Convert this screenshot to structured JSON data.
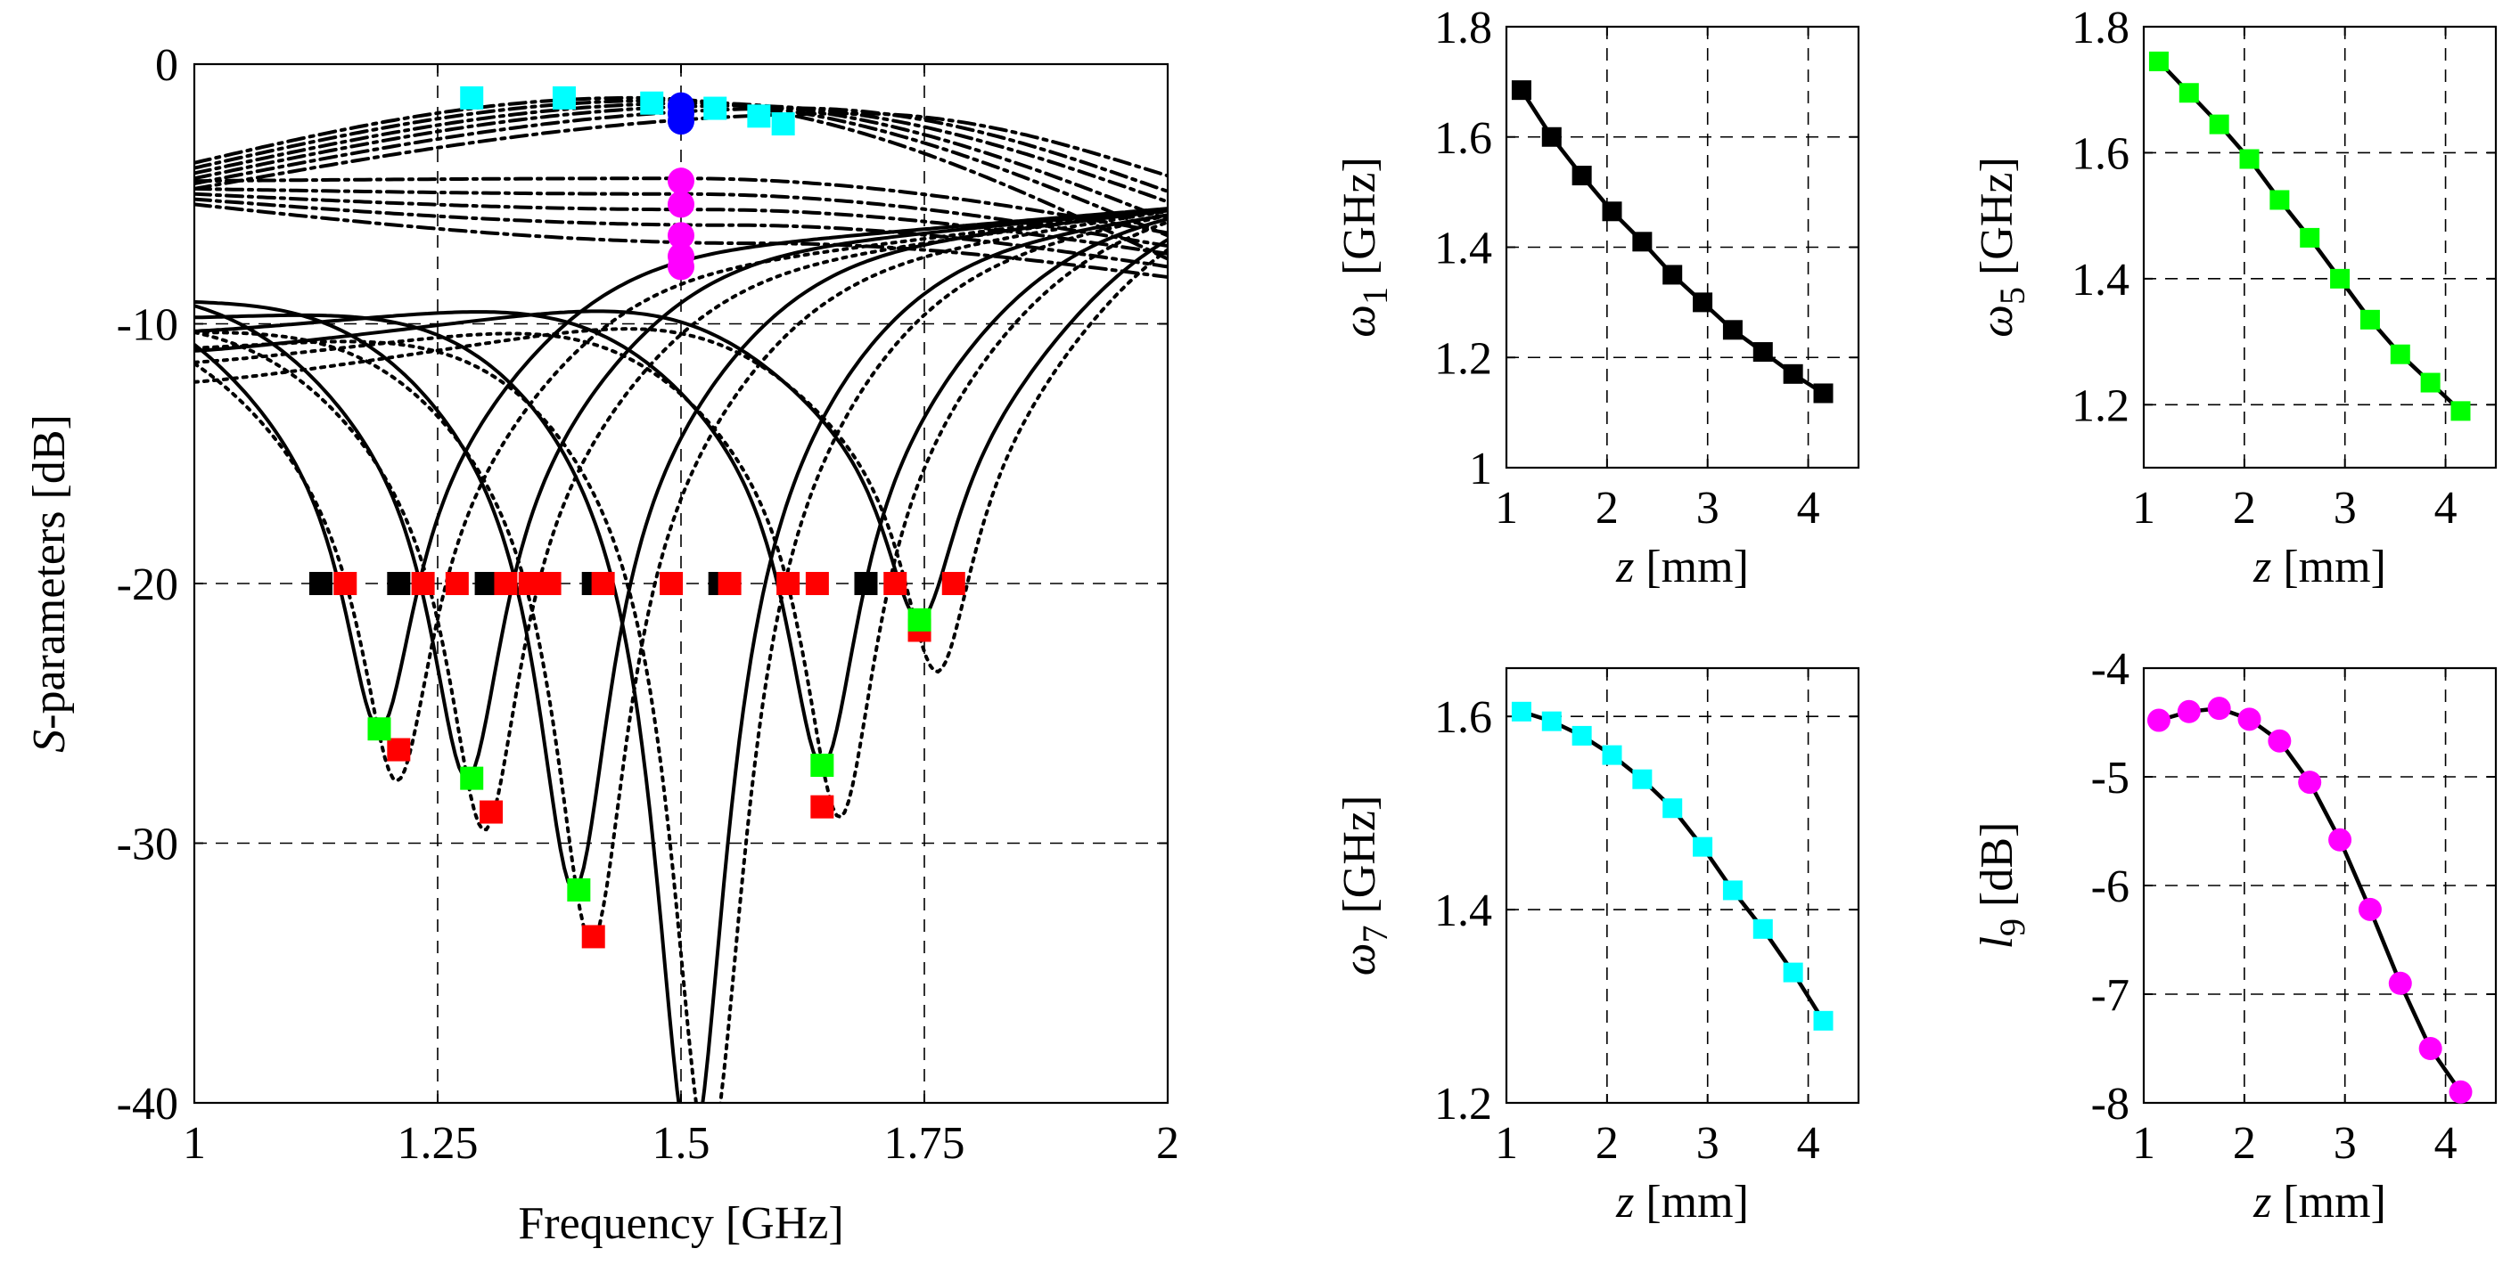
{
  "colors": {
    "black": "#000000",
    "red": "#ff0000",
    "green": "#00ff00",
    "cyan": "#00ffff",
    "magenta": "#ff00ff",
    "blue": "#0000ff"
  },
  "chart_data": [
    {
      "id": "main",
      "type": "line",
      "xlabel": "Frequency [GHz]",
      "ylabel": {
        "italic": "S",
        "rest": "-parameters [dB]"
      },
      "xlim": [
        1,
        2
      ],
      "ylim": [
        -40,
        0
      ],
      "xticks": [
        1,
        1.25,
        1.5,
        1.75,
        2
      ],
      "xtick_labels": [
        "1",
        "1.25",
        "1.5",
        "1.75",
        "2"
      ],
      "yticks": [
        -40,
        -30,
        -20,
        -10,
        0
      ],
      "ytick_labels": [
        "-40",
        "-30",
        "-20",
        "-10",
        "0"
      ],
      "grid": true,
      "reflection_curves": [
        {
          "f0": 1.19,
          "depth": -25.6,
          "width": 0.42,
          "start": -8.0
        },
        {
          "f0": 1.28,
          "depth": -27.5,
          "width": 0.4,
          "start": -8.3
        },
        {
          "f0": 1.39,
          "depth": -31.8,
          "width": 0.38,
          "start": -8.8
        },
        {
          "f0": 1.51,
          "depth": -42.0,
          "width": 0.34,
          "start": -9.5
        },
        {
          "f0": 1.645,
          "depth": -27.0,
          "width": 0.32,
          "start": -10.2
        },
        {
          "f0": 1.745,
          "depth": -21.4,
          "width": 0.3,
          "start": -11.0
        }
      ],
      "transmission_curves": [
        {
          "peak_f": 1.45,
          "peak": -1.3,
          "start": -3.8,
          "end": -7.5
        },
        {
          "peak_f": 1.48,
          "peak": -1.4,
          "start": -4.0,
          "end": -6.6
        },
        {
          "peak_f": 1.52,
          "peak": -1.5,
          "start": -4.2,
          "end": -6.0
        },
        {
          "peak_f": 1.56,
          "peak": -1.6,
          "start": -4.4,
          "end": -5.3
        },
        {
          "peak_f": 1.62,
          "peak": -1.7,
          "start": -4.6,
          "end": -4.9
        },
        {
          "peak_f": 1.68,
          "peak": -1.9,
          "start": -4.8,
          "end": -4.3
        },
        {
          "peak_f": 1.5,
          "peak": -4.4,
          "start": -4.5,
          "end": -6.5
        },
        {
          "peak_f": 1.5,
          "peak": -5.0,
          "start": -4.8,
          "end": -7.0
        },
        {
          "peak_f": 1.52,
          "peak": -5.6,
          "start": -5.0,
          "end": -7.3
        },
        {
          "peak_f": 1.55,
          "peak": -6.2,
          "start": -5.2,
          "end": -7.8
        },
        {
          "peak_f": 1.58,
          "peak": -6.9,
          "start": -5.4,
          "end": -8.2
        }
      ],
      "markers_black_square": [
        [
          1.13,
          -20
        ],
        [
          1.21,
          -20
        ],
        [
          1.3,
          -20
        ],
        [
          1.41,
          -20
        ],
        [
          1.54,
          -20
        ],
        [
          1.69,
          -20
        ]
      ],
      "markers_red_square": [
        [
          1.155,
          -20
        ],
        [
          1.235,
          -20
        ],
        [
          1.27,
          -20
        ],
        [
          1.32,
          -20
        ],
        [
          1.345,
          -20
        ],
        [
          1.365,
          -20
        ],
        [
          1.42,
          -20
        ],
        [
          1.49,
          -20
        ],
        [
          1.55,
          -20
        ],
        [
          1.61,
          -20
        ],
        [
          1.64,
          -20
        ],
        [
          1.72,
          -20
        ],
        [
          1.78,
          -20
        ],
        [
          1.21,
          -26.4
        ],
        [
          1.305,
          -28.8
        ],
        [
          1.41,
          -33.6
        ],
        [
          1.645,
          -28.6
        ],
        [
          1.745,
          -21.8
        ]
      ],
      "markers_green_square": [
        [
          1.19,
          -25.6
        ],
        [
          1.285,
          -27.5
        ],
        [
          1.395,
          -31.8
        ],
        [
          1.645,
          -27.0
        ],
        [
          1.745,
          -21.4
        ]
      ],
      "markers_cyan_square": [
        [
          1.285,
          -1.3
        ],
        [
          1.38,
          -1.3
        ],
        [
          1.47,
          -1.5
        ],
        [
          1.535,
          -1.7
        ],
        [
          1.58,
          -2.0
        ],
        [
          1.605,
          -2.3
        ]
      ],
      "markers_blue_circle": [
        [
          1.5,
          -1.6
        ],
        [
          1.5,
          -1.9
        ],
        [
          1.5,
          -2.2
        ]
      ],
      "markers_magenta_circle": [
        [
          1.5,
          -4.5
        ],
        [
          1.5,
          -5.4
        ],
        [
          1.5,
          -6.6
        ],
        [
          1.5,
          -7.4
        ],
        [
          1.5,
          -7.8
        ]
      ]
    },
    {
      "id": "w1",
      "type": "line",
      "ylabel": {
        "sym": "ω",
        "sub": "1",
        "rest": " [GHz]"
      },
      "xlabel": {
        "italic": "z",
        "rest": " [mm]"
      },
      "xlim": [
        1,
        4.5
      ],
      "ylim": [
        1,
        1.8
      ],
      "xticks": [
        1,
        2,
        3,
        4
      ],
      "xtick_labels": [
        "1",
        "2",
        "3",
        "4"
      ],
      "yticks": [
        1,
        1.2,
        1.4,
        1.6,
        1.8
      ],
      "ytick_labels": [
        "1",
        "1.2",
        "1.4",
        "1.6",
        "1.8"
      ],
      "marker": "square",
      "color": "#000000",
      "x": [
        1.15,
        1.45,
        1.75,
        2.05,
        2.35,
        2.65,
        2.95,
        3.25,
        3.55,
        3.85,
        4.15
      ],
      "y": [
        1.685,
        1.6,
        1.53,
        1.465,
        1.41,
        1.35,
        1.3,
        1.25,
        1.21,
        1.17,
        1.135
      ]
    },
    {
      "id": "w5",
      "type": "line",
      "ylabel": {
        "sym": "ω",
        "sub": "5",
        "rest": " [GHz]"
      },
      "xlabel": {
        "italic": "z",
        "rest": " [mm]"
      },
      "xlim": [
        1,
        4.5
      ],
      "ylim": [
        1.1,
        1.8
      ],
      "xticks": [
        1,
        2,
        3,
        4
      ],
      "xtick_labels": [
        "1",
        "2",
        "3",
        "4"
      ],
      "yticks": [
        1.2,
        1.4,
        1.6,
        1.8
      ],
      "ytick_labels": [
        "1.2",
        "1.4",
        "1.6",
        "1.8"
      ],
      "marker": "square",
      "color": "#00ff00",
      "x": [
        1.15,
        1.45,
        1.75,
        2.05,
        2.35,
        2.65,
        2.95,
        3.25,
        3.55,
        3.85,
        4.15
      ],
      "y": [
        1.745,
        1.695,
        1.645,
        1.59,
        1.525,
        1.465,
        1.4,
        1.335,
        1.28,
        1.235,
        1.19
      ]
    },
    {
      "id": "w7",
      "type": "line",
      "ylabel": {
        "sym": "ω",
        "sub": "7",
        "rest": " [GHz]"
      },
      "xlabel": {
        "italic": "z",
        "rest": " [mm]"
      },
      "xlim": [
        1,
        4.5
      ],
      "ylim": [
        1.2,
        1.65
      ],
      "xticks": [
        1,
        2,
        3,
        4
      ],
      "xtick_labels": [
        "1",
        "2",
        "3",
        "4"
      ],
      "yticks": [
        1.2,
        1.4,
        1.6
      ],
      "ytick_labels": [
        "1.2",
        "1.4",
        "1.6"
      ],
      "marker": "square",
      "color": "#00ffff",
      "x": [
        1.15,
        1.45,
        1.75,
        2.05,
        2.35,
        2.65,
        2.95,
        3.25,
        3.55,
        3.85,
        4.15
      ],
      "y": [
        1.605,
        1.595,
        1.58,
        1.56,
        1.535,
        1.505,
        1.465,
        1.42,
        1.38,
        1.335,
        1.285
      ]
    },
    {
      "id": "l9",
      "type": "line",
      "ylabel": {
        "sym": "l",
        "sub": "9",
        "rest": " [dB]"
      },
      "xlabel": {
        "italic": "z",
        "rest": " [mm]"
      },
      "xlim": [
        1,
        4.5
      ],
      "ylim": [
        -8,
        -4
      ],
      "xticks": [
        1,
        2,
        3,
        4
      ],
      "xtick_labels": [
        "1",
        "2",
        "3",
        "4"
      ],
      "yticks": [
        -8,
        -7,
        -6,
        -5,
        -4
      ],
      "ytick_labels": [
        "-8",
        "-7",
        "-6",
        "-5",
        "-4"
      ],
      "marker": "circle",
      "color": "#ff00ff",
      "x": [
        1.15,
        1.45,
        1.75,
        2.05,
        2.35,
        2.65,
        2.95,
        3.25,
        3.55,
        3.85,
        4.15
      ],
      "y": [
        -4.48,
        -4.4,
        -4.37,
        -4.47,
        -4.67,
        -5.05,
        -5.58,
        -6.22,
        -6.9,
        -7.5,
        -7.9
      ]
    }
  ]
}
